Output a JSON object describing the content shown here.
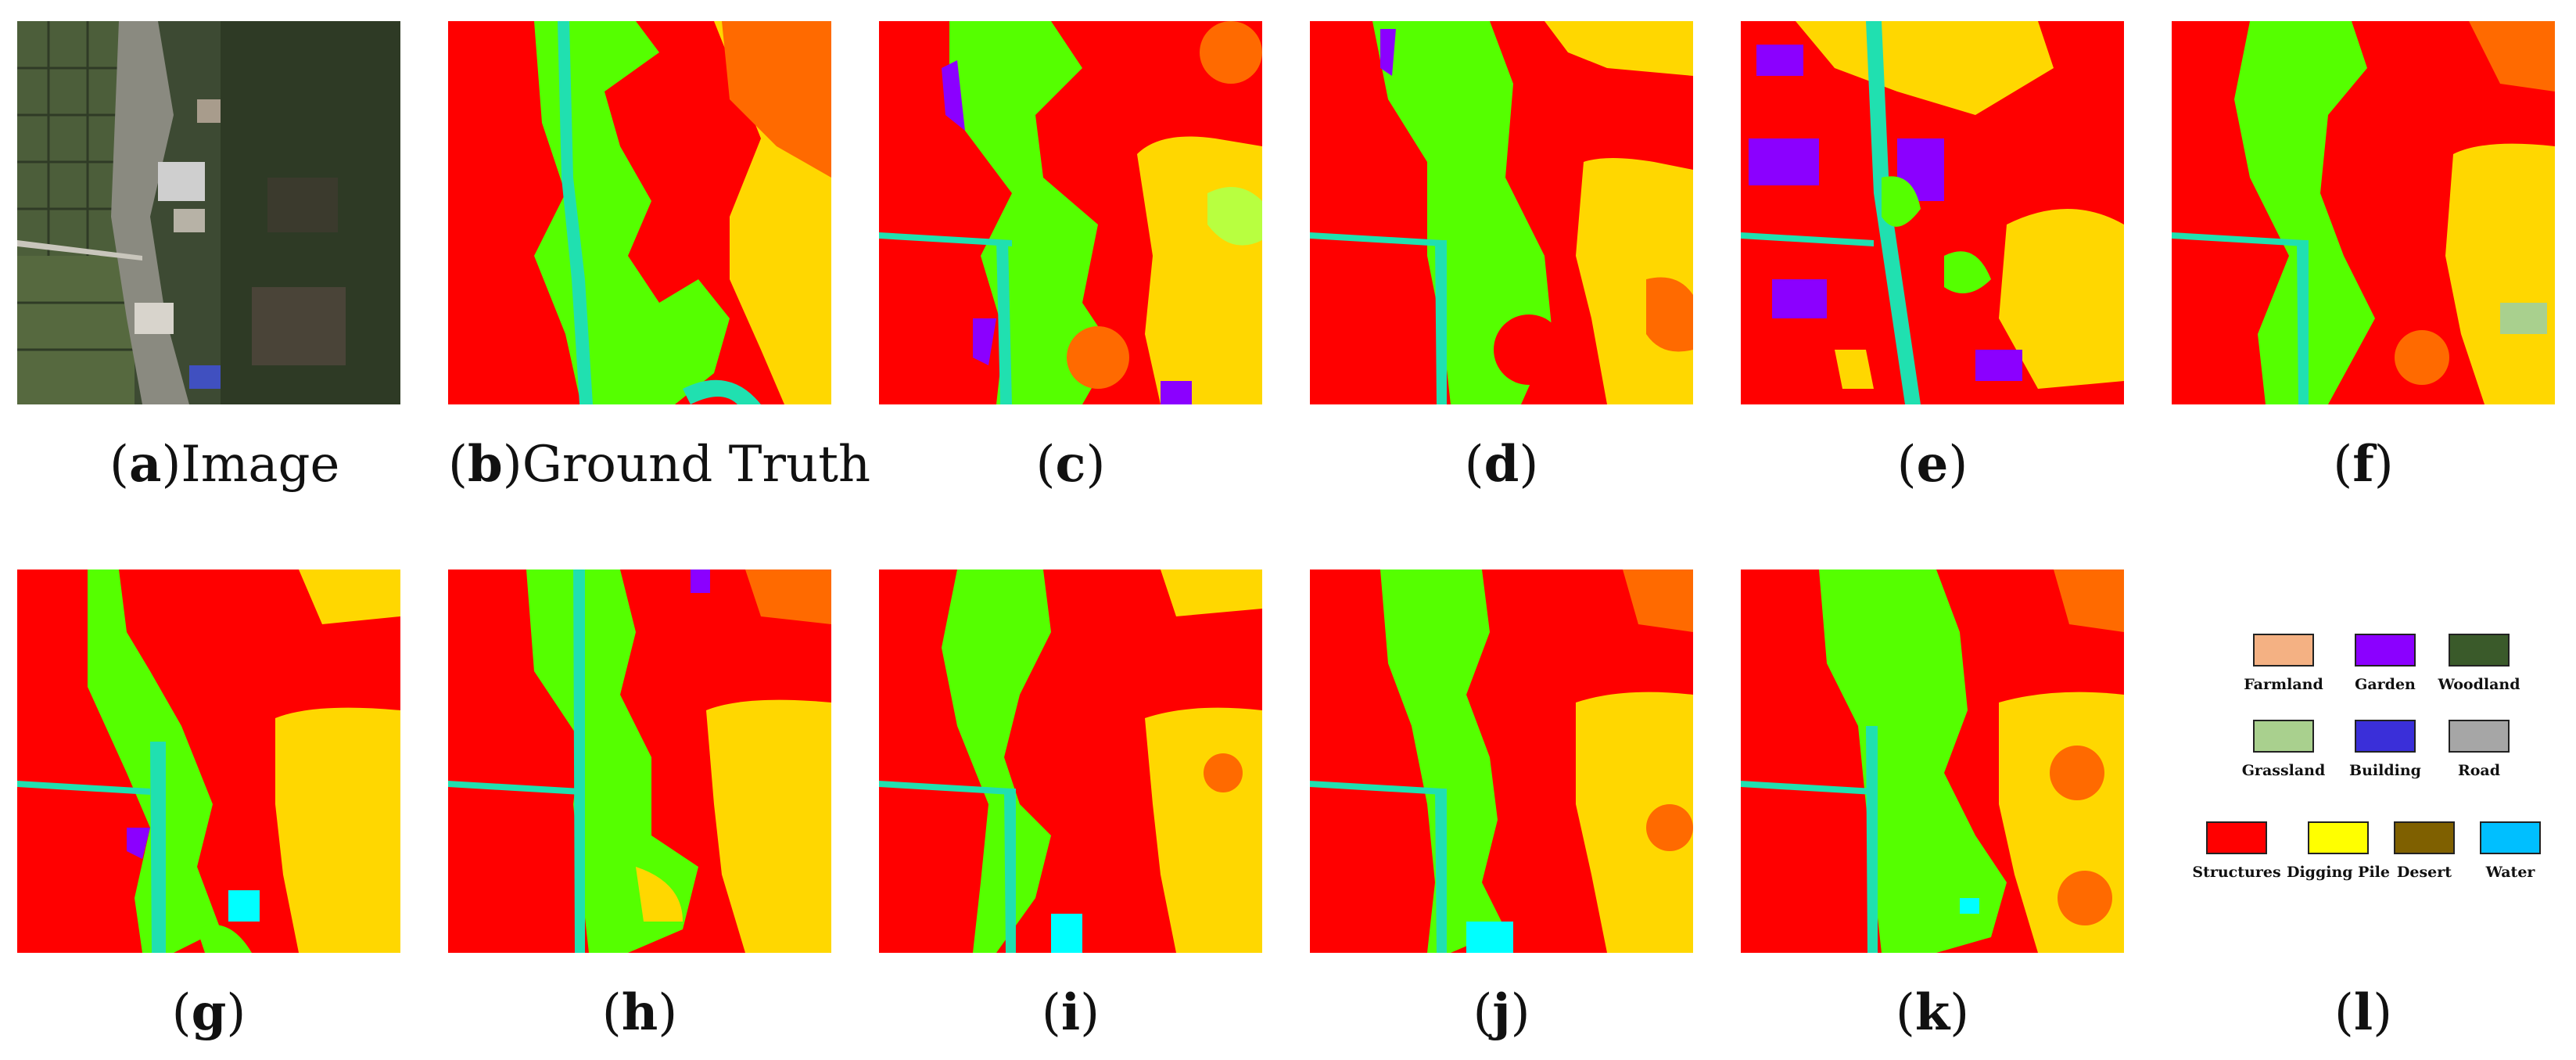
{
  "figure": {
    "panels": [
      {
        "id": "a",
        "letter": "a",
        "text": "Image"
      },
      {
        "id": "b",
        "letter": "b",
        "text": "Ground Truth"
      },
      {
        "id": "c",
        "letter": "c",
        "text": ""
      },
      {
        "id": "d",
        "letter": "d",
        "text": ""
      },
      {
        "id": "e",
        "letter": "e",
        "text": ""
      },
      {
        "id": "f",
        "letter": "f",
        "text": ""
      },
      {
        "id": "g",
        "letter": "g",
        "text": ""
      },
      {
        "id": "h",
        "letter": "h",
        "text": ""
      },
      {
        "id": "i",
        "letter": "i",
        "text": ""
      },
      {
        "id": "j",
        "letter": "j",
        "text": ""
      },
      {
        "id": "k",
        "letter": "k",
        "text": ""
      },
      {
        "id": "l",
        "letter": "l",
        "text": ""
      }
    ],
    "legend": [
      {
        "label": "Farmland",
        "color": "#f4b183"
      },
      {
        "label": "Garden",
        "color": "#8b00ff"
      },
      {
        "label": "Woodland",
        "color": "#3a5a2a"
      },
      {
        "label": "Grassland",
        "color": "#a9d08e"
      },
      {
        "label": "Building",
        "color": "#3a2fd9"
      },
      {
        "label": "Road",
        "color": "#a6a6a6"
      },
      {
        "label": "Structures",
        "color": "#ff0000"
      },
      {
        "label": "Digging Pile",
        "color": "#ffff00"
      },
      {
        "label": "Desert",
        "color": "#7f6000"
      },
      {
        "label": "Water",
        "color": "#00bfff"
      }
    ]
  }
}
